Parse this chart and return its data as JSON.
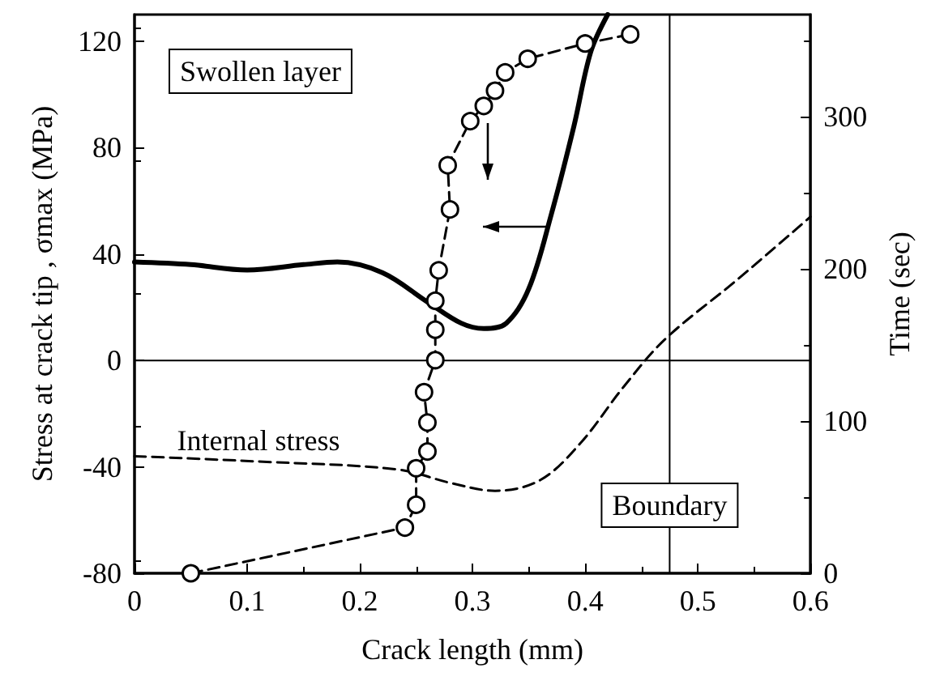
{
  "chart_data": {
    "type": "line",
    "xlabel": "Crack length (mm)",
    "ylabel": "Stress at crack tip , σmax (MPa)",
    "y2label": "Time (sec)",
    "xlim": [
      0,
      0.6
    ],
    "xticks": [
      0,
      0.1,
      0.2,
      0.3,
      0.4,
      0.5,
      0.6
    ],
    "ylim": [
      -80,
      130
    ],
    "yticks": [
      -80,
      -40,
      0,
      40,
      80,
      120
    ],
    "y2lim": [
      0,
      367
    ],
    "y2ticks": [
      0,
      100,
      200,
      300
    ],
    "grid": false,
    "series": [
      {
        "color": "#000000",
        "line_style": "solid",
        "marker": "none",
        "x": [
          0,
          0.05,
          0.1,
          0.15,
          0.18,
          0.22,
          0.26,
          0.29,
          0.31,
          0.33,
          0.35,
          0.37,
          0.39,
          0.405,
          0.42
        ],
        "values": [
          37,
          36,
          34,
          36,
          37,
          33,
          22,
          14,
          12,
          14,
          27,
          55,
          88,
          116,
          130
        ]
      },
      {
        "color": "#000000",
        "line_style": "dashed",
        "marker": "none",
        "x": [
          0,
          0.11,
          0.234,
          0.28,
          0.32,
          0.36,
          0.396,
          0.434,
          0.471,
          0.534,
          0.6
        ],
        "values": [
          -36,
          -38,
          -41,
          -46,
          -49,
          -45,
          -31,
          -10,
          8,
          30,
          54
        ]
      },
      {
        "color": "#000000",
        "line_style": "dashed",
        "marker": "circle",
        "axis": "y2",
        "x": [
          0.05,
          0.24,
          0.25,
          0.25,
          0.26,
          0.26,
          0.257,
          0.267,
          0.267,
          0.267,
          0.27,
          0.28,
          0.278,
          0.298,
          0.31,
          0.32,
          0.329,
          0.349,
          0.4,
          0.44
        ],
        "values": [
          0,
          30,
          45,
          69,
          80,
          99,
          119,
          140,
          160,
          179,
          199,
          239,
          268,
          297,
          307,
          317,
          329,
          338,
          348,
          354
        ]
      }
    ],
    "ref_lines": [
      {
        "axis": "y",
        "value": 0,
        "color": "#000000"
      },
      {
        "axis": "x",
        "value": 0.475,
        "label": "Boundary",
        "color": "#000000"
      }
    ],
    "annotations": [
      "Swollen layer",
      {
        "text": "Internal stress",
        "x": 0.11,
        "y": -38
      }
    ]
  }
}
